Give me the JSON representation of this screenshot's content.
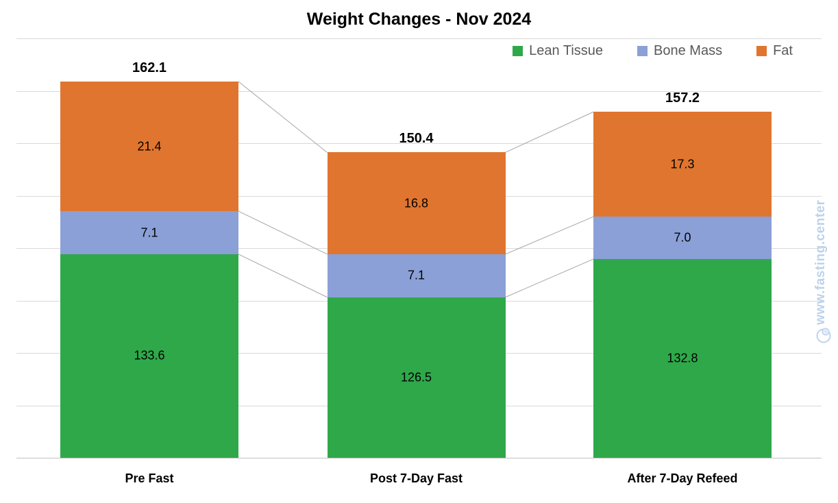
{
  "title": "Weight Changes - Nov 2024",
  "legend": [
    {
      "label": "Lean Tissue",
      "color": "#2fa84a"
    },
    {
      "label": "Bone Mass",
      "color": "#8aa0d6"
    },
    {
      "label": "Fat",
      "color": "#e0752f"
    }
  ],
  "watermark": {
    "symbol": "©",
    "text": "www.fasting.center",
    "color": "#bdd2ea"
  },
  "chart_data": {
    "type": "bar",
    "stacked": true,
    "title": "Weight Changes - Nov 2024",
    "categories": [
      "Pre Fast",
      "Post 7-Day Fast",
      "After 7-Day Refeed"
    ],
    "series": [
      {
        "name": "Lean Tissue",
        "color": "#2fa84a",
        "values": [
          133.6,
          126.5,
          132.8
        ]
      },
      {
        "name": "Bone Mass",
        "color": "#8aa0d6",
        "values": [
          7.1,
          7.1,
          7.0
        ]
      },
      {
        "name": "Fat",
        "color": "#e0752f",
        "values": [
          21.4,
          16.8,
          17.3
        ]
      }
    ],
    "totals": [
      162.1,
      150.4,
      157.2
    ],
    "xlabel": "",
    "ylabel": "",
    "ylim": [
      100,
      170
    ],
    "grid": true,
    "gridline_color": "#d9d9d9",
    "legend_position": "top-right",
    "connector_lines": true,
    "connector_color": "#a6a6a6"
  }
}
